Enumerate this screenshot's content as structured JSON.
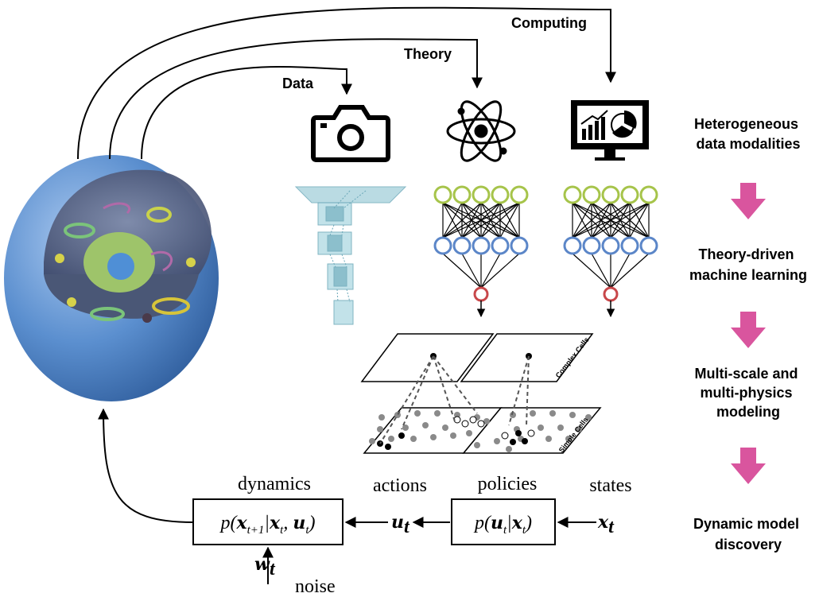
{
  "inputs": {
    "data_label": "Data",
    "theory_label": "Theory",
    "computing_label": "Computing"
  },
  "stages": {
    "stage1": [
      "Heterogeneous",
      "data modalities"
    ],
    "stage2": [
      "Theory-driven",
      "machine learning"
    ],
    "stage3": [
      "Multi-scale and",
      "multi-physics",
      "modeling"
    ],
    "stage4": [
      "Dynamic model",
      "discovery"
    ]
  },
  "cells_labels": {
    "complex": "Complex Cells",
    "simple": "Simple Cells"
  },
  "control_loop": {
    "dynamics_label": "dynamics",
    "actions_label": "actions",
    "policies_label": "policies",
    "states_label": "states",
    "noise_label": "noise",
    "dynamics_expr": "p(x_{t+1}|x_t, u_t)",
    "policy_expr": "p(u_t|x_t)",
    "action_symbol": "u_t",
    "state_symbol": "x_t",
    "noise_symbol": "w_t"
  },
  "colors": {
    "arrow_pink": "#d9559e",
    "input_node": "#a6c44a",
    "hidden_node": "#5b86c8",
    "output_node": "#c8474a",
    "cell_blue": "#5b8fcf"
  }
}
